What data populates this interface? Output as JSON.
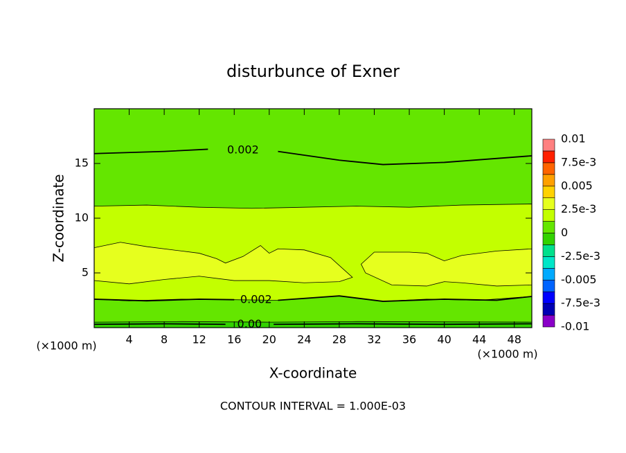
{
  "chart_data": {
    "type": "contour",
    "title": "disturbunce of Exner",
    "xlabel": "X-coordinate",
    "ylabel": "Z-coordinate",
    "xunit": "(×1000 m)",
    "yunit": "(×1000 m)",
    "footer": "CONTOUR INTERVAL = 1.000E-03",
    "xlim": [
      0,
      50
    ],
    "ylim": [
      0,
      20
    ],
    "xticks": [
      4,
      8,
      12,
      16,
      20,
      24,
      28,
      32,
      36,
      40,
      44,
      48
    ],
    "yticks": [
      5,
      10,
      15
    ],
    "colorbar": {
      "levels": [
        -0.01,
        -0.00875,
        -0.0075,
        -0.00625,
        -0.005,
        -0.00375,
        -0.0025,
        -0.00125,
        0,
        0.00125,
        0.0025,
        0.00375,
        0.005,
        0.00625,
        0.0075,
        0.00875,
        0.01
      ],
      "colors": [
        "#8a00c8",
        "#0000b4",
        "#0000ff",
        "#0064ff",
        "#00aaff",
        "#00e6c8",
        "#00e08c",
        "#32d200",
        "#64e600",
        "#c3ff00",
        "#e6ff1e",
        "#ffd200",
        "#ffa000",
        "#ff6400",
        "#ff2000",
        "#ff8080"
      ],
      "ticks": [
        {
          "value": -0.01,
          "label": "-0.01"
        },
        {
          "value": -0.0075,
          "label": "-7.5e-3"
        },
        {
          "value": -0.005,
          "label": "-0.005"
        },
        {
          "value": -0.0025,
          "label": "-2.5e-3"
        },
        0,
        {
          "value": 0.0025,
          "label": "2.5e-3"
        },
        0.005,
        {
          "value": 0.0075,
          "label": "7.5e-3"
        },
        0.01
      ]
    },
    "regions": [
      {
        "level": 0,
        "x": [
          0,
          50,
          50,
          0
        ],
        "y": [
          0,
          0,
          20,
          20
        ]
      },
      {
        "level": 0.00125,
        "x": [
          0,
          6,
          12,
          18,
          24,
          30,
          36,
          42,
          50,
          50,
          44,
          38,
          33,
          28,
          21,
          16,
          10,
          4,
          0
        ],
        "y": [
          11.1,
          11.2,
          11.0,
          10.9,
          11.0,
          11.1,
          11.0,
          11.2,
          11.3,
          2.85,
          2.5,
          2.6,
          2.4,
          2.9,
          2.5,
          2.55,
          2.6,
          2.45,
          2.6
        ]
      },
      {
        "level": 0.0025,
        "x": [
          0,
          3,
          6,
          10,
          12,
          14,
          15,
          17,
          19,
          20,
          21,
          24,
          27,
          29.5,
          28,
          24,
          20,
          16,
          12,
          8,
          4,
          0
        ],
        "y": [
          7.3,
          7.8,
          7.4,
          7.0,
          6.8,
          6.3,
          5.9,
          6.5,
          7.5,
          6.8,
          7.2,
          7.1,
          6.4,
          4.6,
          4.2,
          4.1,
          4.3,
          4.3,
          4.7,
          4.4,
          4.0,
          4.3
        ]
      },
      {
        "level": 0.0025,
        "x": [
          30.5,
          32,
          36,
          38,
          40,
          42,
          46,
          50,
          50,
          46,
          42,
          40,
          38,
          34,
          31
        ],
        "y": [
          5.8,
          6.9,
          6.9,
          6.8,
          6.1,
          6.6,
          7.0,
          7.2,
          3.9,
          3.8,
          4.1,
          4.2,
          3.8,
          3.9,
          5.0
        ]
      },
      {
        "level": -0.00125,
        "x": [
          0,
          50,
          50,
          30,
          20,
          10,
          0
        ],
        "y": [
          0,
          0,
          0.5,
          0.55,
          0.5,
          0.55,
          0.5
        ]
      }
    ],
    "contours": [
      {
        "level": 0.002,
        "label": "0.002",
        "x": [
          0,
          8,
          13,
          null,
          21,
          28,
          33,
          40,
          50
        ],
        "y": [
          15.9,
          16.1,
          16.3,
          null,
          16.1,
          15.3,
          14.9,
          15.1,
          15.7
        ]
      },
      {
        "level": 0.002,
        "label": "0.002",
        "x": [
          0,
          6,
          12,
          16,
          null,
          21,
          28,
          33,
          40,
          46,
          50
        ],
        "y": [
          2.6,
          2.45,
          2.6,
          2.55,
          null,
          2.5,
          2.9,
          2.4,
          2.6,
          2.5,
          2.85
        ]
      },
      {
        "level": 0,
        "label": "0.00",
        "x": [
          0,
          8,
          15,
          null,
          20.5,
          30,
          40,
          50
        ],
        "y": [
          0.3,
          0.35,
          0.3,
          null,
          0.3,
          0.35,
          0.3,
          0.35
        ]
      }
    ]
  }
}
